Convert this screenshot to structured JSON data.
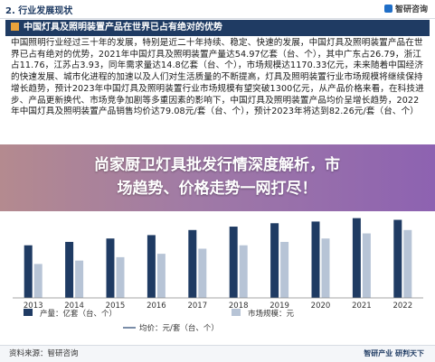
{
  "header": {
    "section": "2. 行业发展现状",
    "brand": "智研咨询"
  },
  "titlebar": {
    "title": "中国灯具及照明装置产品在世界已占有绝对的优势"
  },
  "paragraph": "中国照明行业经过三十年的发展，特别是近二十年持续、稳定、快速的发展，中国灯具及照明装置产品在世界已占有绝对的优势，2021年中国灯具及照明装置产量达54.97亿套（台、个），其中广东占26.79，浙江占11.76，江苏占3.93，同年需求量达14.8亿套（台、个），市场规模达1170.33亿元，未来随着中国经济的快速发展、城市化进程的加速以及人们对生活质量的不断提高，灯具及照明装置行业市场规模将继续保持增长趋势，预计2023年中国灯具及照明装置行业市场规模有望突破1300亿元，从产品价格来看，在科技进步、产品更新换代、市场竞争加剧等多重因素的影响下，中国灯具及照明装置产品均价呈增长趋势，2022年中国灯具及照明装置产品销售均价达79.08元/套（台、个），预计2023年将达到82.26元/套（台、个）",
  "banner": {
    "line1": "尚家厨卫灯具批发行情深度解析，市",
    "line2": "场趋势、价格走势一网打尽！"
  },
  "chart_data": {
    "type": "bar",
    "categories": [
      "2013",
      "2014",
      "2015",
      "2016",
      "2017",
      "2018",
      "2019",
      "2020",
      "2021",
      "2022"
    ],
    "series": [
      {
        "name": "产量：亿套（台、个）",
        "type": "bar",
        "color": "#1f3b63"
      },
      {
        "name": "市场规模：元",
        "type": "bar",
        "color": "#b7c4d6"
      },
      {
        "name": "均价：元/套（台、个）",
        "type": "line",
        "color": "#7a8da8"
      }
    ],
    "legend": [
      {
        "label": "产量：亿套（台、个）",
        "color": "#1f3b63"
      },
      {
        "label": "市场规模：元",
        "color": "#b7c4d6"
      },
      {
        "label": "均价：元/套（台、个）",
        "color": "#7a8da8"
      }
    ]
  },
  "footer": {
    "source": "资料来源：智研咨询",
    "logo": "智研产业 研判天下"
  },
  "colors": {
    "navy": "#1f3b63",
    "banner": "#9b6fb0"
  }
}
